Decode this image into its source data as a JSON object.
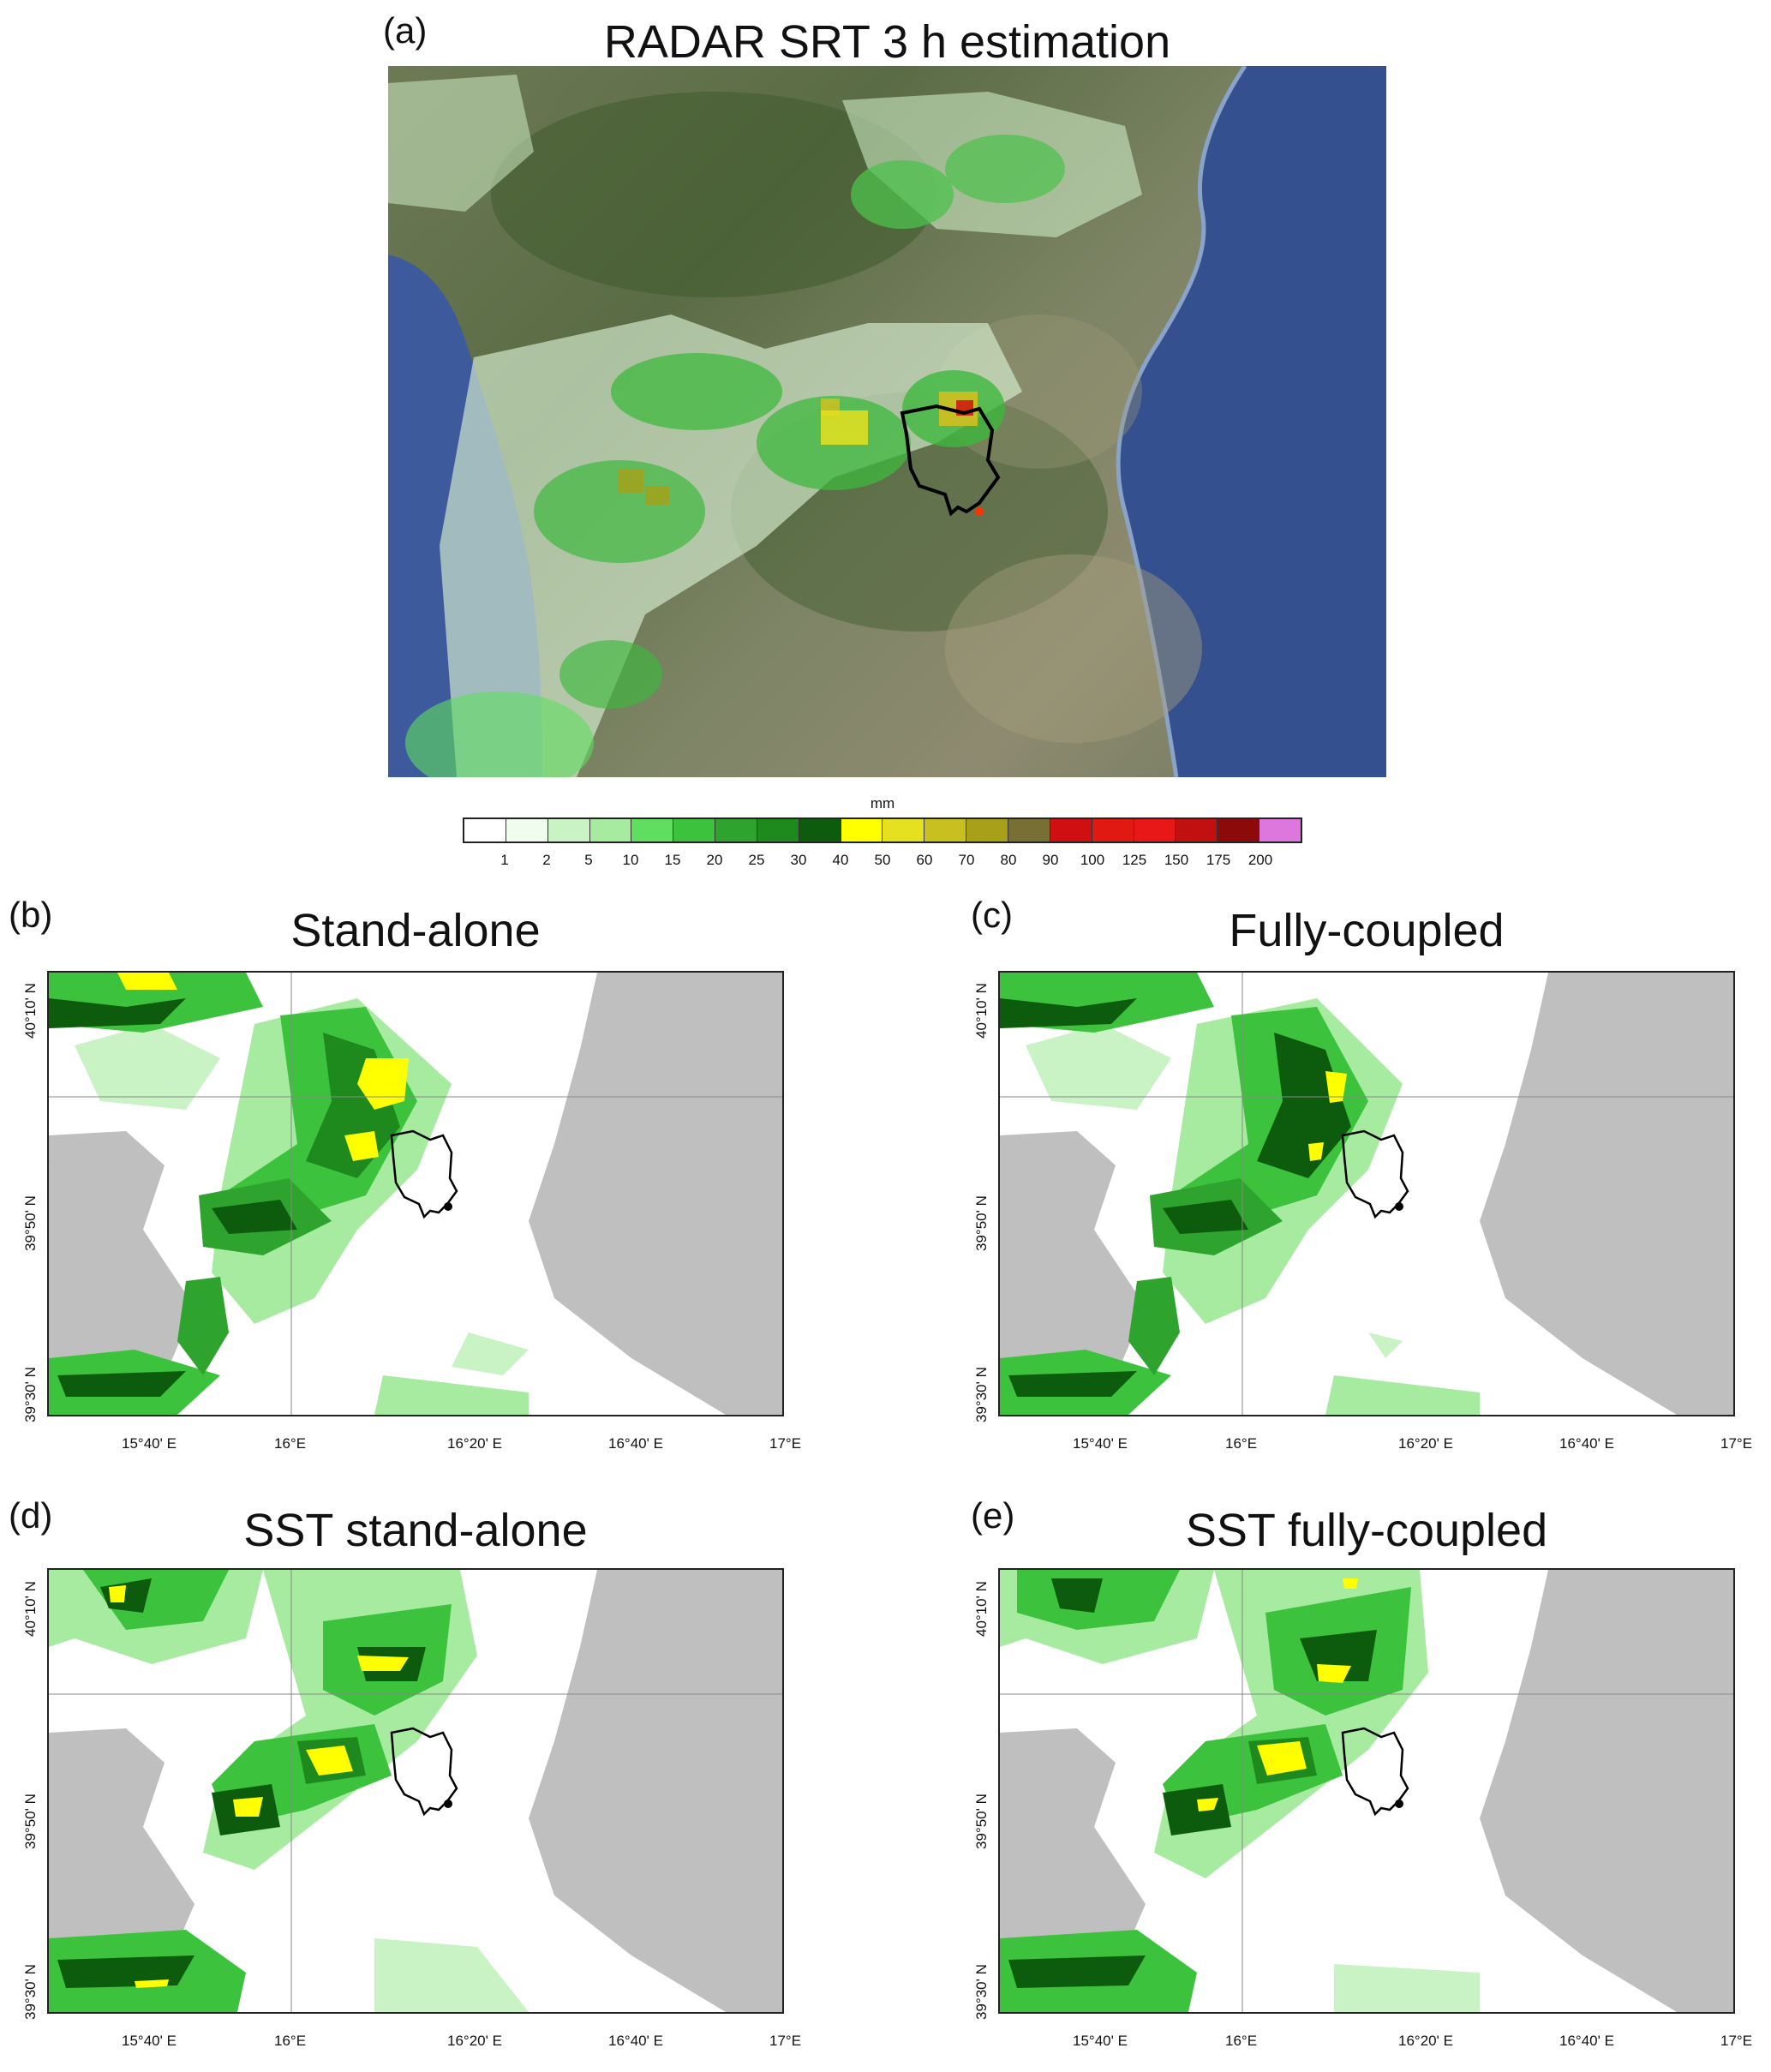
{
  "panel_a": {
    "letter": "(a)",
    "title": "RADAR SRT 3 h estimation"
  },
  "colorbar": {
    "unit": "mm",
    "labels": [
      "1",
      "2",
      "5",
      "10",
      "15",
      "20",
      "25",
      "30",
      "40",
      "50",
      "60",
      "70",
      "80",
      "90",
      "100",
      "125",
      "150",
      "175",
      "200"
    ],
    "colors": [
      "#ffffff",
      "#f0fcee",
      "#c9f3c5",
      "#a6eba0",
      "#5fde5f",
      "#3cc23c",
      "#2ea32e",
      "#1e8a1e",
      "#0d5c0d",
      "#ffff00",
      "#e5e020",
      "#c8c021",
      "#a8a018",
      "#787032",
      "#d01010",
      "#e01a12",
      "#e81818",
      "#c01010",
      "#8c0a0a",
      "#dd77dd"
    ]
  },
  "panels": [
    {
      "id": "b",
      "letter": "(b)",
      "title": "Stand-alone"
    },
    {
      "id": "c",
      "letter": "(c)",
      "title": "Fully-coupled"
    },
    {
      "id": "d",
      "letter": "(d)",
      "title": "SST stand-alone"
    },
    {
      "id": "e",
      "letter": "(e)",
      "title": "SST fully-coupled"
    }
  ],
  "axes": {
    "x_ticks": [
      "15°40' E",
      "16°E",
      "16°20' E",
      "16°40' E",
      "17°E"
    ],
    "y_ticks": [
      "40°10' N",
      "39°50' N",
      "39°30' N"
    ]
  },
  "colors": {
    "sea_gray": "#bfbfbf",
    "frame": "#222222",
    "catchment": "#000000",
    "outlet": "#000000"
  }
}
